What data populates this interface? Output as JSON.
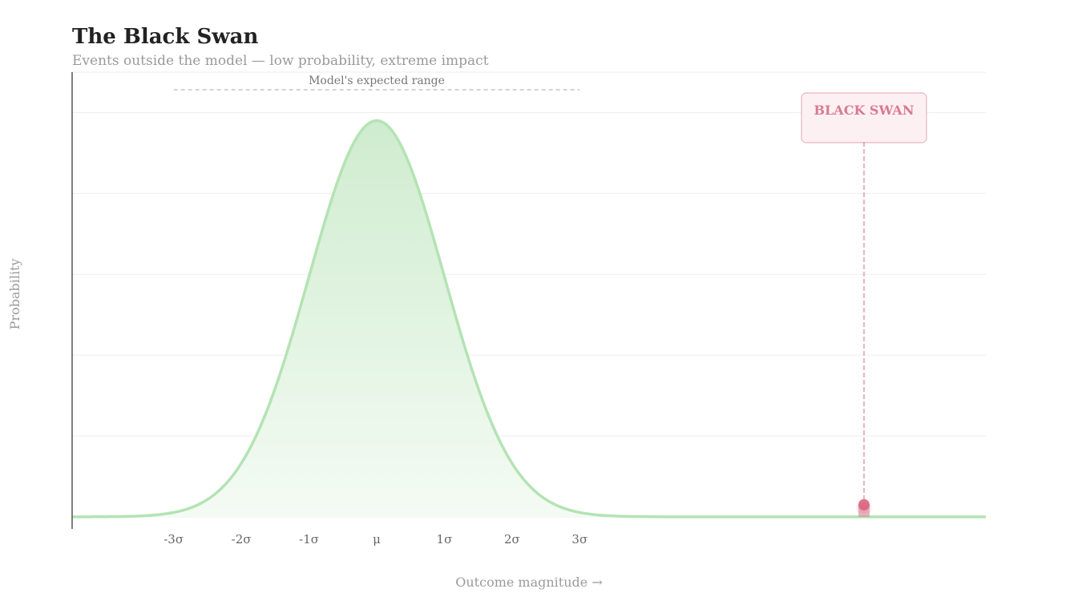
{
  "chart_data": {
    "type": "area",
    "title": "The Black Swan",
    "subtitle": "Events outside the model — low probability, extreme impact",
    "xlabel": "Outcome magnitude →",
    "ylabel": "Probability",
    "x_ticks": [
      "-3σ",
      "-2σ",
      "-1σ",
      "μ",
      "1σ",
      "2σ",
      "3σ"
    ],
    "x_tick_values": [
      -3,
      -2,
      -1,
      0,
      1,
      2,
      3
    ],
    "xlim": [
      -4.5,
      9
    ],
    "ylim": [
      0,
      1.1
    ],
    "distribution": {
      "name": "normal",
      "mean": 0,
      "sd": 1,
      "peak": 0.98
    },
    "expected_range": {
      "label": "Model's expected range",
      "from": -3,
      "to": 3
    },
    "black_swan": {
      "label": "BLACK SWAN",
      "x": 7.2,
      "y": 0.03
    },
    "grid": true,
    "colors": {
      "curve": "#b4e3b4",
      "fill_top": "#cfeccf",
      "fill_bottom": "#f4fbf4",
      "swan": "#d9657f",
      "swan_box_fill": "#fdf0f3",
      "swan_box_stroke": "#eab5c2",
      "baseline": "#557755",
      "axis": "#555555",
      "grid": "#eeeeee"
    }
  }
}
